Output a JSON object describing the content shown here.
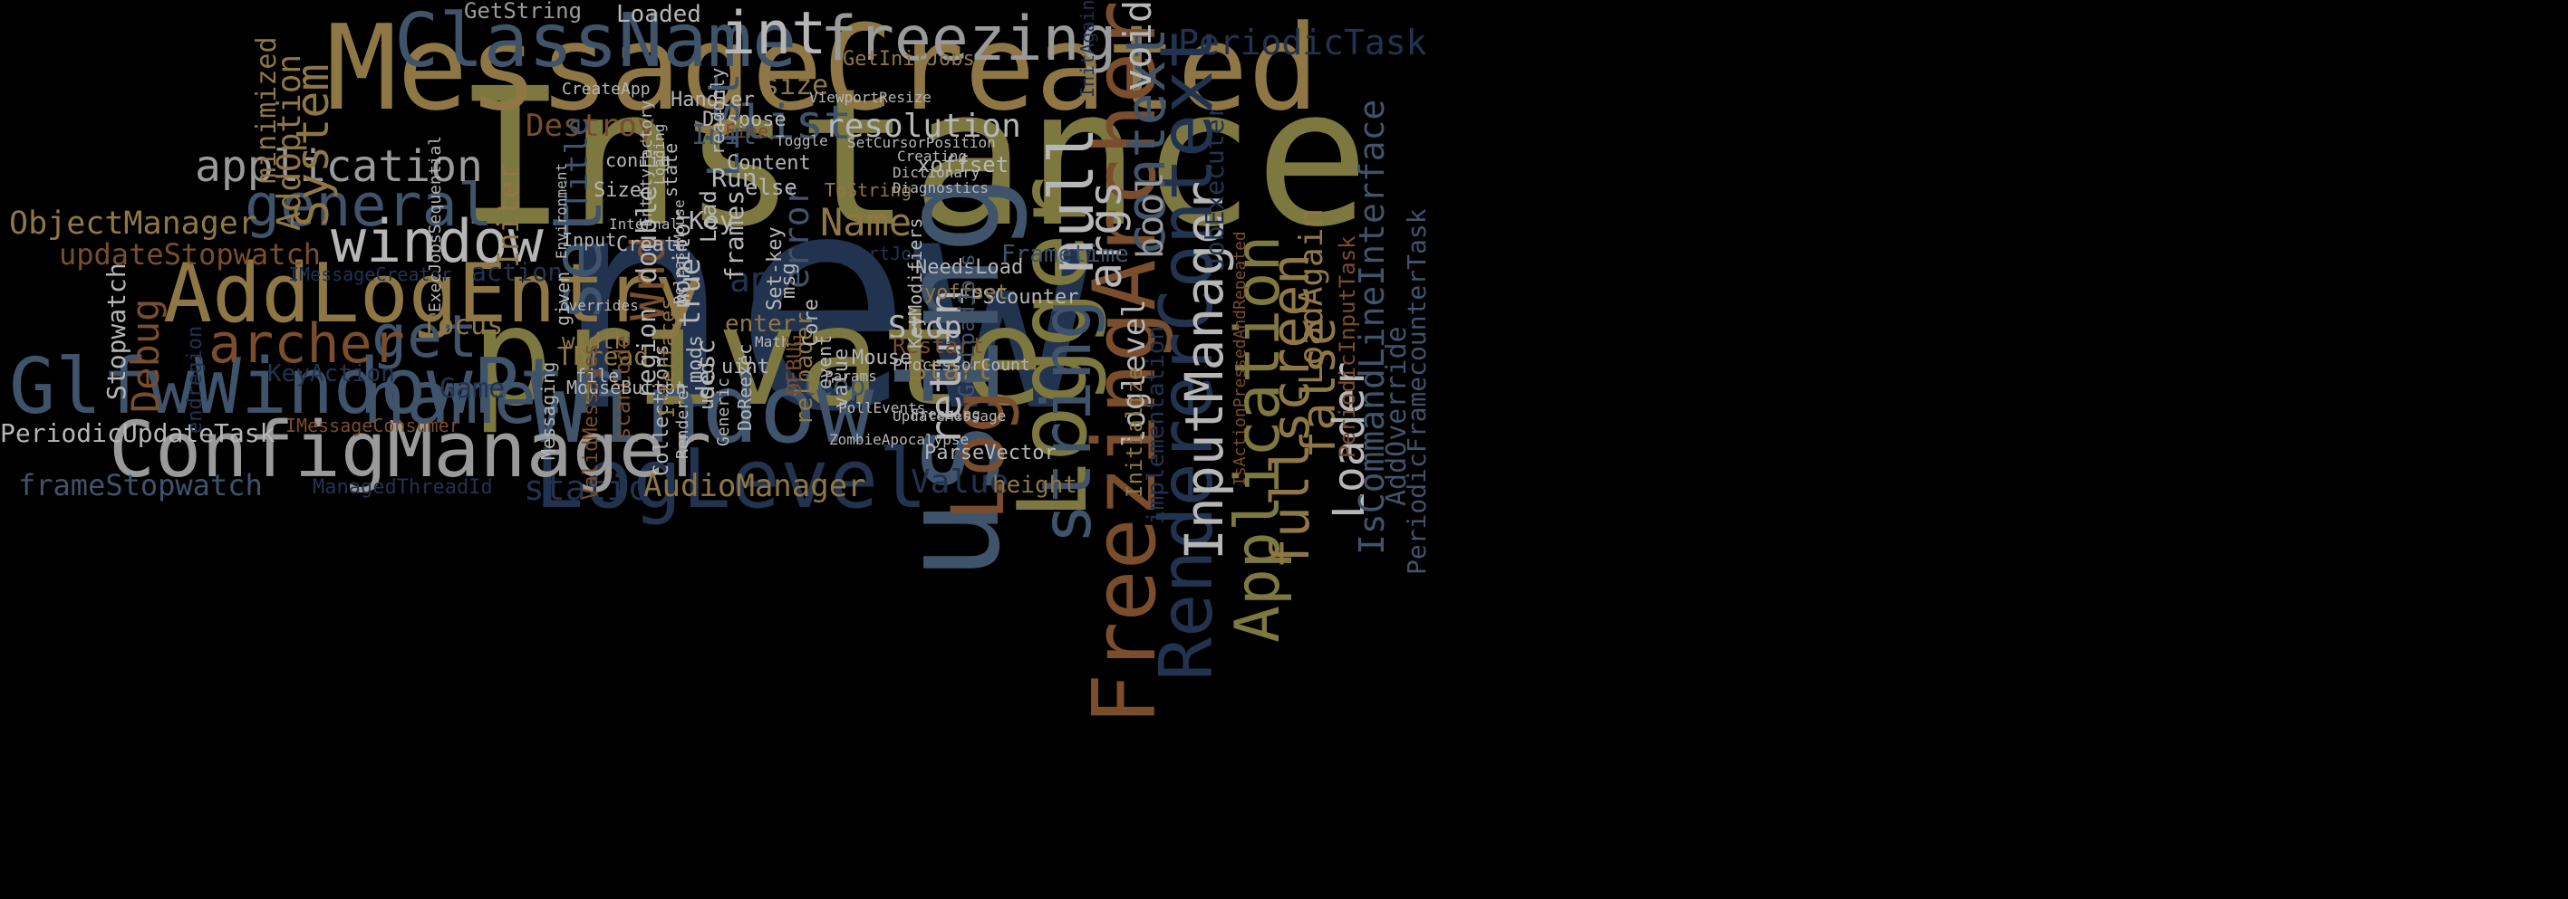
{
  "palette": {
    "background": "#000000",
    "olive": "#7d7840",
    "tan": "#8f7745",
    "rust": "#7a4d2c",
    "slate": "#3f536b",
    "navy": "#223350",
    "gray": "#9a9a9a",
    "lightgray": "#b6b6b6"
  },
  "words": [
    {
      "id": "new",
      "text": "new",
      "color": "navy"
    },
    {
      "id": "instance",
      "text": "Instance",
      "color": "olive"
    },
    {
      "id": "message-created",
      "text": "MessageCreated",
      "color": "tan"
    },
    {
      "id": "private",
      "text": "private",
      "color": "olive"
    },
    {
      "id": "using",
      "text": "using",
      "color": "slate"
    },
    {
      "id": "logger",
      "text": "Logger",
      "color": "olive"
    },
    {
      "id": "freezing-archer",
      "text": "FreezingArcher",
      "color": "rust"
    },
    {
      "id": "renderer-context",
      "text": "RendererContext",
      "color": "navy"
    },
    {
      "id": "window-big",
      "text": "Window",
      "color": "slate"
    },
    {
      "id": "loglevel",
      "text": "LogLevel",
      "color": "navy"
    },
    {
      "id": "config-manager",
      "text": "ConfigManager",
      "color": "gray"
    },
    {
      "id": "glfw-window-ptr",
      "text": "GlfwWindowPtr",
      "color": "slate"
    },
    {
      "id": "add-log-entry",
      "text": "AddLogEntry",
      "color": "tan"
    },
    {
      "id": "class-name",
      "text": "ClassName",
      "color": "slate"
    },
    {
      "id": "freezing",
      "text": "freezing",
      "color": "gray"
    },
    {
      "id": "int",
      "text": "int",
      "color": "lightgray"
    },
    {
      "id": "log",
      "text": "Log",
      "color": "rust"
    },
    {
      "id": "string",
      "text": "string",
      "color": "slate"
    },
    {
      "id": "name",
      "text": "name",
      "color": "slate"
    },
    {
      "id": "get",
      "text": "get",
      "color": "slate"
    },
    {
      "id": "set",
      "text": "set",
      "color": "slate"
    },
    {
      "id": "window-small",
      "text": "window",
      "color": "lightgray"
    },
    {
      "id": "general",
      "text": "general",
      "color": "slate"
    },
    {
      "id": "application",
      "text": "application",
      "color": "gray"
    },
    {
      "id": "archer",
      "text": "archer",
      "color": "rust"
    },
    {
      "id": "object-manager",
      "text": "ObjectManager",
      "color": "tan"
    },
    {
      "id": "update-stopwatch",
      "text": "updateStopwatch",
      "color": "rust"
    },
    {
      "id": "frame-stopwatch",
      "text": "frameStopwatch",
      "color": "slate"
    },
    {
      "id": "periodic-update-task",
      "text": "PeriodicUpdateTask",
      "color": "lightgray"
    },
    {
      "id": "audio-manager",
      "text": "AudioManager",
      "color": "tan"
    },
    {
      "id": "static",
      "text": "static",
      "color": "navy"
    },
    {
      "id": "managed-thread-id",
      "text": "ManagedThreadId",
      "color": "navy"
    },
    {
      "id": "value",
      "text": "Value",
      "color": "navy"
    },
    {
      "id": "height",
      "text": "height",
      "color": "tan"
    },
    {
      "id": "periodic-task",
      "text": "PeriodicTask",
      "color": "navy"
    },
    {
      "id": "input-manager",
      "text": "InputManager",
      "color": "lightgray"
    },
    {
      "id": "application-cap",
      "text": "Application",
      "color": "olive"
    },
    {
      "id": "fullscreen",
      "text": "fullscreen",
      "color": "tan"
    },
    {
      "id": "false",
      "text": "false",
      "color": "tan"
    },
    {
      "id": "loader",
      "text": "Loader",
      "color": "lightgray"
    },
    {
      "id": "load-again",
      "text": "LoadAgain",
      "color": "tan"
    },
    {
      "id": "is-command-line-interface",
      "text": "IsCommandLineInterface",
      "color": "slate"
    },
    {
      "id": "add-override",
      "text": "AddOverride",
      "color": "slate"
    },
    {
      "id": "periodic-framecounter-task",
      "text": "PeriodicFramecounterTask",
      "color": "slate"
    },
    {
      "id": "periodic-input-task",
      "text": "PeriodicInputTask",
      "color": "rust"
    },
    {
      "id": "null",
      "text": "null",
      "color": "lightgray"
    },
    {
      "id": "args",
      "text": "args",
      "color": "lightgray"
    },
    {
      "id": "context",
      "text": "context",
      "color": "slate"
    },
    {
      "id": "void",
      "text": "void",
      "color": "lightgray"
    },
    {
      "id": "bool",
      "text": "bool",
      "color": "gray"
    },
    {
      "id": "return",
      "text": "return",
      "color": "lightgray"
    },
    {
      "id": "loglevel-small",
      "text": "loglevel",
      "color": "lightgray"
    },
    {
      "id": "stop",
      "text": "Stop",
      "color": "lightgray"
    },
    {
      "id": "start",
      "text": "Start",
      "color": "tan"
    },
    {
      "id": "name-cap",
      "text": "Name",
      "color": "tan"
    },
    {
      "id": "error",
      "text": "error",
      "color": "slate"
    },
    {
      "id": "debug",
      "text": "Debug",
      "color": "rust"
    },
    {
      "id": "stopwatch",
      "text": "Stopwatch",
      "color": "lightgray"
    },
    {
      "id": "focus",
      "text": "focus",
      "color": "tan"
    },
    {
      "id": "system",
      "text": "System",
      "color": "tan"
    },
    {
      "id": "add-option",
      "text": "AddOption",
      "color": "tan"
    },
    {
      "id": "minimized",
      "text": "minimized",
      "color": "tan"
    },
    {
      "id": "get-string",
      "text": "GetString",
      "color": "gray"
    },
    {
      "id": "loaded",
      "text": "Loaded",
      "color": "lightgray"
    },
    {
      "id": "list",
      "text": "list",
      "color": "slate"
    },
    {
      "id": "list-cap",
      "text": "List",
      "color": "slate"
    },
    {
      "id": "resolution",
      "text": "resolution",
      "color": "lightgray"
    },
    {
      "id": "size",
      "text": "size",
      "color": "tan"
    },
    {
      "id": "get-init-jobs",
      "text": "GetInitJobs",
      "color": "tan"
    },
    {
      "id": "destroy",
      "text": "Destroy",
      "color": "rust"
    },
    {
      "id": "init",
      "text": "Init",
      "color": "slate"
    },
    {
      "id": "initer",
      "text": "Initer",
      "color": "tan"
    },
    {
      "id": "title",
      "text": "Title",
      "color": "slate"
    },
    {
      "id": "wnd",
      "text": "Wnd",
      "color": "rust"
    },
    {
      "id": "double",
      "text": "double",
      "color": "lightgray"
    },
    {
      "id": "true",
      "text": "true",
      "color": "lightgray"
    },
    {
      "id": "key",
      "text": "Key",
      "color": "lightgray"
    },
    {
      "id": "app",
      "text": "app",
      "color": "navy"
    },
    {
      "id": "enter",
      "text": "enter",
      "color": "tan"
    },
    {
      "id": "frametime",
      "text": "Frametime",
      "color": "slate"
    },
    {
      "id": "thread",
      "text": "Thread",
      "color": "tan"
    },
    {
      "id": "width",
      "text": "width",
      "color": "tan"
    },
    {
      "id": "region",
      "text": "region",
      "color": "lightgray"
    },
    {
      "id": "scan-code",
      "text": "scanCode",
      "color": "rust"
    },
    {
      "id": "desc",
      "text": "desc",
      "color": "lightgray"
    },
    {
      "id": "action",
      "text": "action",
      "color": "navy"
    },
    {
      "id": "key-action",
      "text": "KeyAction",
      "color": "navy"
    },
    {
      "id": "game",
      "text": "Game",
      "color": "navy"
    },
    {
      "id": "mouse-button",
      "text": "MouseButton",
      "color": "lightgray"
    },
    {
      "id": "imessage-creator",
      "text": "IMessageCreator",
      "color": "navy"
    },
    {
      "id": "imessage-consumer",
      "text": "IMessageConsumer",
      "color": "rust"
    },
    {
      "id": "endregion",
      "text": "endregion",
      "color": "navy"
    },
    {
      "id": "job-executer",
      "text": "JobExecuter",
      "color": "navy"
    },
    {
      "id": "implementation",
      "text": "implementation",
      "color": "navy"
    },
    {
      "id": "initialize",
      "text": "Initialize",
      "color": "tan"
    },
    {
      "id": "fps-counter",
      "text": "FPSCounter",
      "color": "lightgray"
    },
    {
      "id": "needs-load",
      "text": "NeedsLoad",
      "color": "lightgray"
    },
    {
      "id": "yoffset",
      "text": "yoffset",
      "color": "tan"
    },
    {
      "id": "xoffset",
      "text": "xoffset",
      "color": "lightgray"
    },
    {
      "id": "insert-jobs",
      "text": "InsertJobs",
      "color": "navy"
    },
    {
      "id": "restart",
      "text": "Restart",
      "color": "rust"
    },
    {
      "id": "parse-vector",
      "text": "ParseVector",
      "color": "lightgray"
    },
    {
      "id": "sleep",
      "text": "sleep",
      "color": "slate"
    },
    {
      "id": "reloader",
      "text": "reloader",
      "color": "tan"
    },
    {
      "id": "mouse",
      "text": "Mouse",
      "color": "lightgray"
    },
    {
      "id": "core",
      "text": "Core",
      "color": "lightgray"
    },
    {
      "id": "run",
      "text": "Run",
      "color": "lightgray"
    },
    {
      "id": "handler",
      "text": "Handler",
      "color": "lightgray"
    },
    {
      "id": "frames",
      "text": "frames",
      "color": "lightgray"
    },
    {
      "id": "content",
      "text": "Content",
      "color": "lightgray"
    },
    {
      "id": "else",
      "text": "else",
      "color": "lightgray"
    },
    {
      "id": "monitor",
      "text": "monitor",
      "color": "lightgray"
    },
    {
      "id": "load",
      "text": "Load",
      "color": "lightgray"
    },
    {
      "id": "input",
      "text": "Input",
      "color": "lightgray"
    },
    {
      "id": "create",
      "text": "Create",
      "color": "lightgray"
    },
    {
      "id": "create-app",
      "text": "CreateApp",
      "color": "lightgray"
    },
    {
      "id": "entity-factory",
      "text": "EntityFactory",
      "color": "lightgray"
    },
    {
      "id": "dispose",
      "text": "Dispose",
      "color": "lightgray"
    },
    {
      "id": "readonly",
      "text": "readonly",
      "color": "lightgray"
    },
    {
      "id": "exec-jobs-sequential",
      "text": "ExecJobsSequential",
      "color": "lightgray"
    },
    {
      "id": "to-string",
      "text": "ToString",
      "color": "tan"
    },
    {
      "id": "messaging",
      "text": "Messaging",
      "color": "lightgray"
    },
    {
      "id": "valid-messages",
      "text": "ValidMessages",
      "color": "rust"
    },
    {
      "id": "collections",
      "text": "Collections",
      "color": "lightgray"
    },
    {
      "id": "file",
      "text": "file",
      "color": "lightgray"
    },
    {
      "id": "interfaces",
      "text": "Interfaces",
      "color": "tan"
    },
    {
      "id": "do-reexec",
      "text": "DoReexec",
      "color": "lightgray"
    },
    {
      "id": "event",
      "text": "event",
      "color": "lightgray"
    },
    {
      "id": "key-modifiers",
      "text": "KeyModifiers",
      "color": "lightgray"
    },
    {
      "id": "get-load-jobs",
      "text": "GetLoadJobs",
      "color": "slate"
    },
    {
      "id": "is-action-pressed-and-repeated",
      "text": "IsActionPressedAndRepeated",
      "color": "rust"
    },
    {
      "id": "init-again",
      "text": "InitAgain",
      "color": "navy"
    },
    {
      "id": "processor-count",
      "text": "ProcessorCount",
      "color": "lightgray"
    },
    {
      "id": "update-message",
      "text": "UpdateMessage",
      "color": "lightgray"
    },
    {
      "id": "uint",
      "text": "uint",
      "color": "lightgray"
    },
    {
      "id": "used",
      "text": "used",
      "color": "lightgray"
    },
    {
      "id": "mods",
      "text": "mods",
      "color": "lightgray"
    },
    {
      "id": "renderer",
      "text": "Renderer",
      "color": "lightgray"
    },
    {
      "id": "generic",
      "text": "Generic",
      "color": "lightgray"
    },
    {
      "id": "poll-events",
      "text": "PollEvents",
      "color": "lightgray"
    },
    {
      "id": "math",
      "text": "Math",
      "color": "lightgray"
    },
    {
      "id": "msg",
      "text": "msg",
      "color": "lightgray"
    },
    {
      "id": "set-key",
      "text": "Set-key",
      "color": "lightgray"
    },
    {
      "id": "debug-caps",
      "text": "DEBUG",
      "color": "rust"
    },
    {
      "id": "value-small",
      "text": "value",
      "color": "lightgray"
    },
    {
      "id": "fine",
      "text": "Fine",
      "color": "rust"
    },
    {
      "id": "given",
      "text": "given",
      "color": "lightgray"
    },
    {
      "id": "internal",
      "text": "Internal",
      "color": "lightgray"
    },
    {
      "id": "overrides",
      "text": "overrides",
      "color": "lightgray"
    },
    {
      "id": "environment",
      "text": "Environment",
      "color": "lightgray"
    },
    {
      "id": "config",
      "text": "config",
      "color": "lightgray"
    },
    {
      "id": "state",
      "text": "state",
      "color": "lightgray"
    },
    {
      "id": "loading",
      "text": "Loading",
      "color": "lightgray"
    },
    {
      "id": "toggle",
      "text": "Toggle",
      "color": "lightgray"
    },
    {
      "id": "creating",
      "text": "Creating",
      "color": "lightgray"
    },
    {
      "id": "dictionary",
      "text": "Dictionary",
      "color": "lightgray"
    },
    {
      "id": "diagnostics",
      "text": "Diagnostics",
      "color": "lightgray"
    },
    {
      "id": "zombie-apocalypse",
      "text": "ZombieApocalypse",
      "color": "lightgray"
    },
    {
      "id": "release-mouse",
      "text": "ReleaseMouse",
      "color": "lightgray"
    },
    {
      "id": "set-cursor-position",
      "text": "SetCursorPosition",
      "color": "lightgray"
    },
    {
      "id": "viewport-resize",
      "text": "ViewportResize",
      "color": "lightgray"
    },
    {
      "id": "freezing-small",
      "text": "Freezing",
      "color": "lightgray"
    },
    {
      "id": "params",
      "text": "Params",
      "color": "lightgray"
    },
    {
      "id": "sixe",
      "text": "Size",
      "color": "lightgray"
    }
  ]
}
